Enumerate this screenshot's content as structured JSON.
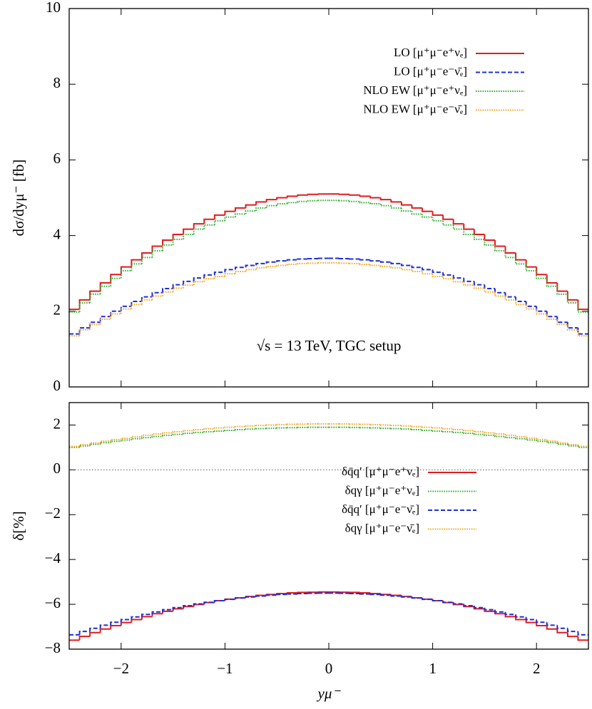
{
  "chart_data": [
    {
      "type": "histogram",
      "ylabel": "dσ/dyμ⁻ [fb]",
      "annotation": "√s = 13 TeV, TGC setup",
      "bins": [
        -2.5,
        -2.4,
        -2.3,
        -2.2,
        -2.1,
        -2.0,
        -1.9,
        -1.8,
        -1.7,
        -1.6,
        -1.5,
        -1.4,
        -1.3,
        -1.2,
        -1.1,
        -1.0,
        -0.9,
        -0.8,
        -0.7,
        -0.6,
        -0.5,
        -0.4,
        -0.3,
        -0.2,
        -0.1,
        0,
        0.1,
        0.2,
        0.3,
        0.4,
        0.5,
        0.6,
        0.7,
        0.8,
        0.9,
        1.0,
        1.1,
        1.2,
        1.3,
        1.4,
        1.5,
        1.6,
        1.7,
        1.8,
        1.9,
        2.0,
        2.1,
        2.2,
        2.3,
        2.4,
        2.5
      ],
      "xlim": [
        -2.5,
        2.5
      ],
      "xticks": [
        -2,
        -1,
        0,
        1,
        2
      ],
      "ylim": [
        0,
        10
      ],
      "yticks": [
        0,
        2,
        4,
        6,
        8,
        10
      ],
      "legend": "upper right",
      "series": [
        {
          "name": "LO  [μ⁺μ⁻e⁺νₑ]",
          "color": "#e41a1c",
          "linestyle": "solid",
          "values": [
            2.05,
            2.3,
            2.53,
            2.75,
            2.97,
            3.17,
            3.36,
            3.54,
            3.72,
            3.88,
            4.03,
            4.17,
            4.31,
            4.43,
            4.54,
            4.64,
            4.73,
            4.81,
            4.89,
            4.95,
            5.0,
            5.04,
            5.07,
            5.09,
            5.1,
            5.1,
            5.09,
            5.07,
            5.04,
            5.0,
            4.95,
            4.89,
            4.81,
            4.73,
            4.64,
            4.54,
            4.43,
            4.31,
            4.17,
            4.03,
            3.88,
            3.72,
            3.54,
            3.36,
            3.17,
            2.97,
            2.75,
            2.53,
            2.3,
            2.05
          ]
        },
        {
          "name": "LO  [μ⁺μ⁻e⁻ν̄ₑ]",
          "color": "#1f2fd8",
          "linestyle": "dashed",
          "values": [
            1.4,
            1.56,
            1.71,
            1.86,
            2.0,
            2.13,
            2.26,
            2.38,
            2.49,
            2.6,
            2.7,
            2.79,
            2.88,
            2.96,
            3.03,
            3.1,
            3.16,
            3.21,
            3.26,
            3.3,
            3.33,
            3.36,
            3.38,
            3.39,
            3.4,
            3.4,
            3.39,
            3.38,
            3.36,
            3.33,
            3.3,
            3.26,
            3.21,
            3.16,
            3.1,
            3.03,
            2.96,
            2.88,
            2.79,
            2.7,
            2.6,
            2.49,
            2.38,
            2.26,
            2.13,
            2.0,
            1.86,
            1.71,
            1.56,
            1.4
          ]
        },
        {
          "name": "NLO EW  [μ⁺μ⁻e⁺νₑ]",
          "color": "#33b033",
          "linestyle": "dotted",
          "values": [
            1.98,
            2.22,
            2.45,
            2.66,
            2.87,
            3.07,
            3.25,
            3.42,
            3.6,
            3.75,
            3.9,
            4.03,
            4.17,
            4.28,
            4.39,
            4.49,
            4.57,
            4.65,
            4.73,
            4.79,
            4.84,
            4.87,
            4.9,
            4.92,
            4.93,
            4.93,
            4.92,
            4.9,
            4.87,
            4.84,
            4.79,
            4.73,
            4.65,
            4.57,
            4.49,
            4.39,
            4.28,
            4.17,
            4.03,
            3.9,
            3.75,
            3.6,
            3.42,
            3.25,
            3.07,
            2.87,
            2.66,
            2.45,
            2.22,
            1.98
          ]
        },
        {
          "name": "NLO EW  [μ⁺μ⁻e⁻ν̄ₑ]",
          "color": "#f5a623",
          "linestyle": "dotted",
          "values": [
            1.35,
            1.51,
            1.65,
            1.79,
            1.93,
            2.06,
            2.18,
            2.3,
            2.4,
            2.51,
            2.61,
            2.69,
            2.78,
            2.86,
            2.92,
            2.99,
            3.05,
            3.1,
            3.15,
            3.18,
            3.21,
            3.24,
            3.26,
            3.27,
            3.28,
            3.28,
            3.27,
            3.26,
            3.24,
            3.21,
            3.18,
            3.15,
            3.1,
            3.05,
            2.99,
            2.92,
            2.86,
            2.78,
            2.69,
            2.61,
            2.51,
            2.4,
            2.3,
            2.18,
            2.06,
            1.93,
            1.79,
            1.65,
            1.51,
            1.35
          ]
        }
      ]
    },
    {
      "type": "histogram",
      "ylabel": "δ[%]",
      "xlabel": "yμ⁻",
      "zero_line": true,
      "bins": [
        -2.5,
        -2.4,
        -2.3,
        -2.2,
        -2.1,
        -2.0,
        -1.9,
        -1.8,
        -1.7,
        -1.6,
        -1.5,
        -1.4,
        -1.3,
        -1.2,
        -1.1,
        -1.0,
        -0.9,
        -0.8,
        -0.7,
        -0.6,
        -0.5,
        -0.4,
        -0.3,
        -0.2,
        -0.1,
        0,
        0.1,
        0.2,
        0.3,
        0.4,
        0.5,
        0.6,
        0.7,
        0.8,
        0.9,
        1.0,
        1.1,
        1.2,
        1.3,
        1.4,
        1.5,
        1.6,
        1.7,
        1.8,
        1.9,
        2.0,
        2.1,
        2.2,
        2.3,
        2.4,
        2.5
      ],
      "xlim": [
        -2.5,
        2.5
      ],
      "xticks": [
        {
          "value": -2,
          "label": "−2"
        },
        {
          "value": -1,
          "label": "−1"
        },
        0,
        1,
        2
      ],
      "ylim": [
        -8,
        3
      ],
      "yticks": [
        {
          "value": -8,
          "label": "−8"
        },
        {
          "value": -6,
          "label": "−6"
        },
        {
          "value": -4,
          "label": "−4"
        },
        {
          "value": -2,
          "label": "−2"
        },
        0,
        2
      ],
      "legend": "center right",
      "series": [
        {
          "name": "δq̄q′ [μ⁺μ⁻e⁺νₑ]",
          "color": "#e41a1c",
          "linestyle": "solid",
          "values": [
            -7.6,
            -7.43,
            -7.26,
            -7.1,
            -6.95,
            -6.81,
            -6.68,
            -6.55,
            -6.42,
            -6.31,
            -6.2,
            -6.1,
            -6.01,
            -5.92,
            -5.84,
            -5.77,
            -5.71,
            -5.65,
            -5.6,
            -5.56,
            -5.52,
            -5.49,
            -5.47,
            -5.46,
            -5.45,
            -5.45,
            -5.46,
            -5.47,
            -5.49,
            -5.52,
            -5.56,
            -5.6,
            -5.65,
            -5.71,
            -5.77,
            -5.84,
            -5.92,
            -6.01,
            -6.1,
            -6.2,
            -6.31,
            -6.42,
            -6.55,
            -6.68,
            -6.81,
            -6.95,
            -7.1,
            -7.26,
            -7.43,
            -7.6
          ]
        },
        {
          "name": "δqγ [μ⁺μ⁻e⁺νₑ]",
          "color": "#33b033",
          "linestyle": "dotted",
          "values": [
            1.0,
            1.07,
            1.14,
            1.21,
            1.27,
            1.33,
            1.39,
            1.44,
            1.49,
            1.54,
            1.58,
            1.63,
            1.67,
            1.7,
            1.73,
            1.76,
            1.79,
            1.82,
            1.84,
            1.85,
            1.87,
            1.88,
            1.89,
            1.9,
            1.9,
            1.9,
            1.9,
            1.89,
            1.88,
            1.87,
            1.85,
            1.84,
            1.82,
            1.79,
            1.76,
            1.73,
            1.7,
            1.67,
            1.63,
            1.58,
            1.54,
            1.49,
            1.44,
            1.39,
            1.33,
            1.27,
            1.21,
            1.14,
            1.07,
            1.0
          ]
        },
        {
          "name": "δq̄q′ [μ⁺μ⁻e⁻ν̄ₑ]",
          "color": "#1f2fd8",
          "linestyle": "dashed",
          "values": [
            -7.36,
            -7.21,
            -7.07,
            -6.93,
            -6.8,
            -6.68,
            -6.56,
            -6.45,
            -6.34,
            -6.24,
            -6.15,
            -6.06,
            -5.98,
            -5.91,
            -5.84,
            -5.78,
            -5.72,
            -5.67,
            -5.63,
            -5.59,
            -5.56,
            -5.54,
            -5.52,
            -5.51,
            -5.5,
            -5.5,
            -5.51,
            -5.52,
            -5.54,
            -5.56,
            -5.59,
            -5.63,
            -5.67,
            -5.72,
            -5.78,
            -5.84,
            -5.91,
            -5.98,
            -6.06,
            -6.15,
            -6.24,
            -6.34,
            -6.45,
            -6.56,
            -6.68,
            -6.8,
            -6.93,
            -7.07,
            -7.21,
            -7.36
          ]
        },
        {
          "name": "δqγ [μ⁺μ⁻e⁻ν̄ₑ]",
          "color": "#f5a623",
          "linestyle": "dotted",
          "values": [
            1.05,
            1.13,
            1.2,
            1.28,
            1.35,
            1.41,
            1.48,
            1.54,
            1.6,
            1.65,
            1.7,
            1.75,
            1.79,
            1.83,
            1.87,
            1.9,
            1.93,
            1.96,
            1.98,
            2.0,
            2.02,
            2.03,
            2.04,
            2.05,
            2.05,
            2.05,
            2.05,
            2.04,
            2.03,
            2.02,
            2.0,
            1.98,
            1.96,
            1.93,
            1.9,
            1.87,
            1.83,
            1.79,
            1.75,
            1.7,
            1.65,
            1.6,
            1.54,
            1.48,
            1.41,
            1.35,
            1.28,
            1.2,
            1.13,
            1.05
          ]
        }
      ]
    }
  ]
}
